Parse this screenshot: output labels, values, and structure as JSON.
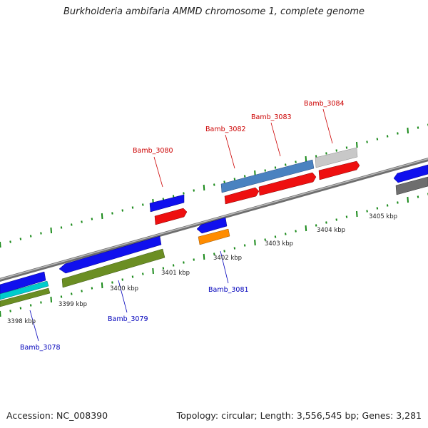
{
  "title": "Burkholderia ambifaria AMMD chromosome 1, complete genome",
  "footer": {
    "accession": "Accession: NC_008390",
    "topology": "Topology: circular; Length: 3,556,545 bp; Genes: 3,281"
  },
  "colors": {
    "backbone": "#8a8a8a",
    "ticks": "#1a8a1a",
    "label_upper": "#cc0000",
    "label_lower": "#0000bb"
  },
  "kbp_labels": [
    "3398 kbp",
    "3399 kbp",
    "3400 kbp",
    "3401 kbp",
    "3402 kbp",
    "3403 kbp",
    "3404 kbp",
    "3405 kbp"
  ],
  "gene_labels_upper": [
    "Bamb_3080",
    "Bamb_3082",
    "Bamb_3083",
    "Bamb_3084"
  ],
  "gene_labels_lower": [
    "Bamb_3078",
    "Bamb_3079",
    "Bamb_3081"
  ]
}
